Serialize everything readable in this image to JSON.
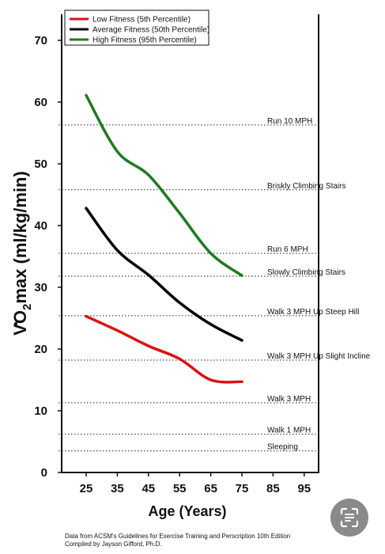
{
  "chart_data": {
    "type": "line",
    "xlabel": "Age (Years)",
    "ylabel": "VO2max (ml/kg/min)",
    "ylabel_parts": {
      "v": "V",
      "o": "O",
      "sub": "2",
      "rest": "max (ml/kg/min)"
    },
    "xlim": [
      20,
      100
    ],
    "ylim": [
      0,
      73
    ],
    "xticks": [
      "25",
      "35",
      "45",
      "55",
      "65",
      "75",
      "85",
      "95"
    ],
    "yticks": [
      "0",
      "10",
      "20",
      "30",
      "40",
      "50",
      "60",
      "70"
    ],
    "legend_position": "top-left",
    "series": [
      {
        "name": "Low Fitness (5th Percentile)",
        "color": "#dd1111",
        "x": [
          25,
          35,
          45,
          55,
          65,
          75
        ],
        "y": [
          25.3,
          23.0,
          20.5,
          18.4,
          15.0,
          14.7
        ]
      },
      {
        "name": "Average Fitness (50th Percentile)",
        "color": "#000000",
        "x": [
          25,
          35,
          45,
          55,
          65,
          75
        ],
        "y": [
          42.8,
          36.0,
          32.0,
          27.5,
          24.0,
          21.4
        ]
      },
      {
        "name": "High Fitness (95th Percentile)",
        "color": "#1f7a1f",
        "x": [
          25,
          35,
          45,
          55,
          65,
          75
        ],
        "y": [
          61.1,
          52.0,
          48.2,
          42.0,
          35.5,
          31.9
        ]
      }
    ],
    "reference_lines": [
      {
        "label": "Run 10 MPH",
        "y": 56.3
      },
      {
        "label": "Briskly Climbing Stairs",
        "y": 45.8
      },
      {
        "label": "Run 6 MPH",
        "y": 35.5
      },
      {
        "label": "Slowly Climbing Stairs",
        "y": 31.8
      },
      {
        "label": "Walk 3 MPH Up Steep Hill",
        "y": 25.4
      },
      {
        "label": "Walk 3 MPH Up Slight Incline",
        "y": 18.2
      },
      {
        "label": "Walk 3 MPH",
        "y": 11.3
      },
      {
        "label": "Walk 1 MPH",
        "y": 6.2
      },
      {
        "label": "Sleeping",
        "y": 3.5
      }
    ]
  },
  "footer": {
    "line1": "Data from ACSM's Guidelines for Exercise Training and Perscription 10th Edition",
    "line2": "Compiled by Jayson Gifford, Ph.D."
  },
  "overlay": {
    "lens_icon": "lens-icon"
  }
}
